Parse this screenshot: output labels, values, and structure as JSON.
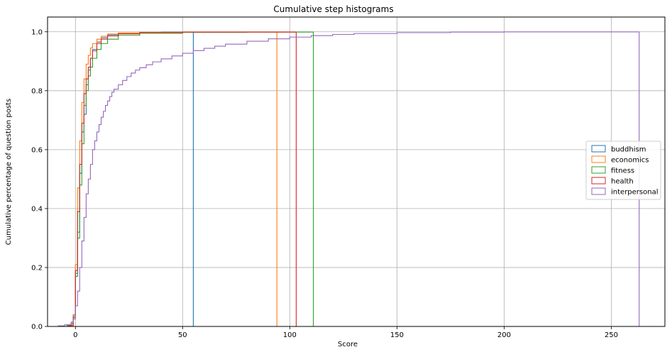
{
  "chart_data": {
    "type": "line",
    "subtype": "cumulative-step-histogram",
    "title": "Cumulative step histograms",
    "xlabel": "Score",
    "ylabel": "Cumulative percentage of question posts",
    "xlim": [
      -13,
      275
    ],
    "ylim": [
      0,
      1.05
    ],
    "xticks": [
      0,
      50,
      100,
      150,
      200,
      250
    ],
    "yticks": [
      0.0,
      0.2,
      0.4,
      0.6,
      0.8,
      1.0
    ],
    "xtick_labels": [
      "0",
      "50",
      "100",
      "150",
      "200",
      "250"
    ],
    "ytick_labels": [
      "0.0",
      "0.2",
      "0.4",
      "0.6",
      "0.8",
      "1.0"
    ],
    "grid": true,
    "legend_position": "center-right",
    "series": [
      {
        "name": "buddhism",
        "color": "#1f77b4",
        "x": [
          -4,
          -2,
          -1,
          0,
          1,
          2,
          3,
          4,
          5,
          6,
          7,
          8,
          10,
          12,
          15,
          20,
          30,
          40,
          55
        ],
        "y": [
          0.003,
          0.01,
          0.04,
          0.18,
          0.32,
          0.52,
          0.66,
          0.72,
          0.82,
          0.87,
          0.91,
          0.94,
          0.965,
          0.98,
          0.99,
          0.995,
          0.998,
          0.999,
          1.0
        ],
        "end_x": 55
      },
      {
        "name": "economics",
        "color": "#ff7f0e",
        "x": [
          -3,
          -1,
          0,
          1,
          2,
          3,
          4,
          5,
          6,
          7,
          8,
          10,
          12,
          15,
          20,
          30,
          50,
          94
        ],
        "y": [
          0.005,
          0.04,
          0.21,
          0.47,
          0.63,
          0.76,
          0.84,
          0.89,
          0.92,
          0.945,
          0.96,
          0.975,
          0.985,
          0.992,
          0.996,
          0.998,
          0.999,
          1.0
        ],
        "end_x": 94
      },
      {
        "name": "fitness",
        "color": "#2ca02c",
        "x": [
          -4,
          -2,
          -1,
          0,
          1,
          2,
          3,
          4,
          5,
          6,
          7,
          8,
          10,
          12,
          15,
          20,
          30,
          50,
          80,
          111
        ],
        "y": [
          0.002,
          0.01,
          0.035,
          0.17,
          0.3,
          0.48,
          0.62,
          0.75,
          0.8,
          0.85,
          0.88,
          0.91,
          0.94,
          0.96,
          0.975,
          0.988,
          0.995,
          0.998,
          0.999,
          1.0
        ],
        "end_x": 111
      },
      {
        "name": "health",
        "color": "#d62728",
        "x": [
          -3,
          -1,
          0,
          1,
          2,
          3,
          4,
          5,
          6,
          7,
          8,
          10,
          12,
          15,
          20,
          30,
          50,
          103
        ],
        "y": [
          0.003,
          0.03,
          0.19,
          0.39,
          0.55,
          0.69,
          0.79,
          0.84,
          0.88,
          0.91,
          0.935,
          0.96,
          0.975,
          0.986,
          0.993,
          0.997,
          0.999,
          1.0
        ],
        "end_x": 103
      },
      {
        "name": "interpersonal",
        "color": "#9467bd",
        "x": [
          -8,
          -5,
          -2,
          -1,
          0,
          1,
          2,
          3,
          4,
          5,
          6,
          7,
          8,
          9,
          10,
          11,
          12,
          13,
          14,
          15,
          16,
          17,
          18,
          20,
          22,
          24,
          26,
          28,
          30,
          33,
          36,
          40,
          45,
          50,
          55,
          60,
          65,
          70,
          80,
          90,
          100,
          110,
          120,
          130,
          150,
          175,
          200,
          263
        ],
        "y": [
          0.002,
          0.006,
          0.015,
          0.025,
          0.07,
          0.12,
          0.2,
          0.29,
          0.37,
          0.45,
          0.5,
          0.55,
          0.6,
          0.63,
          0.66,
          0.685,
          0.71,
          0.73,
          0.75,
          0.765,
          0.78,
          0.795,
          0.805,
          0.82,
          0.835,
          0.848,
          0.86,
          0.87,
          0.878,
          0.888,
          0.898,
          0.908,
          0.918,
          0.927,
          0.936,
          0.944,
          0.951,
          0.958,
          0.968,
          0.976,
          0.982,
          0.987,
          0.991,
          0.994,
          0.997,
          0.999,
          0.9995,
          1.0
        ],
        "end_x": 263
      }
    ]
  }
}
